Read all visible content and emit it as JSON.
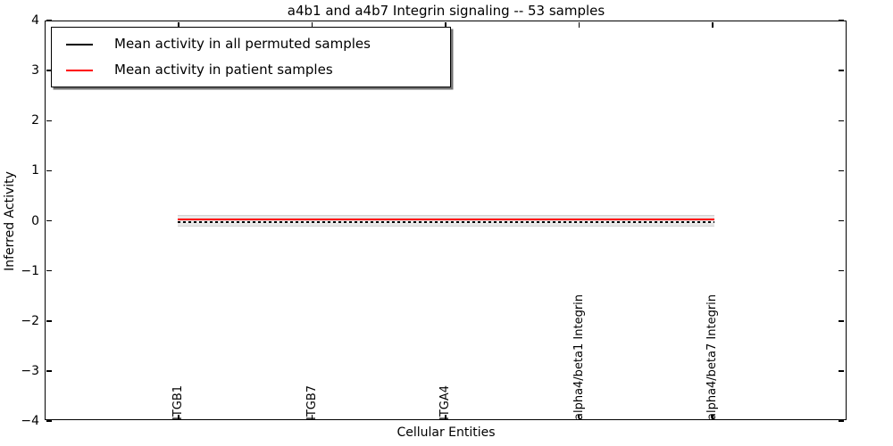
{
  "chart_data": {
    "type": "line",
    "title": "a4b1 and a4b7 Integrin signaling -- 53 samples",
    "xlabel": "Cellular Entities",
    "ylabel": "Inferred Activity",
    "ylim": [
      -4,
      4
    ],
    "yticks": [
      4,
      3,
      2,
      1,
      0,
      -1,
      -2,
      -3,
      -4
    ],
    "categories": [
      "ITGB1",
      "ITGB7",
      "ITGA4",
      "alpha4/beta1 Integrin",
      "alpha4/beta7 Integrin"
    ],
    "series": [
      {
        "name": "Mean activity in all permuted samples",
        "color": "#000000",
        "values": [
          -0.02,
          -0.02,
          -0.02,
          -0.02,
          -0.02
        ]
      },
      {
        "name": "Mean activity in patient samples",
        "color": "#ff0000",
        "values": [
          0.03,
          0.03,
          0.03,
          0.03,
          0.03
        ]
      }
    ],
    "band": {
      "color": "#e8e8e8",
      "low": -0.12,
      "high": 0.12
    },
    "legend_position": "upper left",
    "grid": false
  }
}
